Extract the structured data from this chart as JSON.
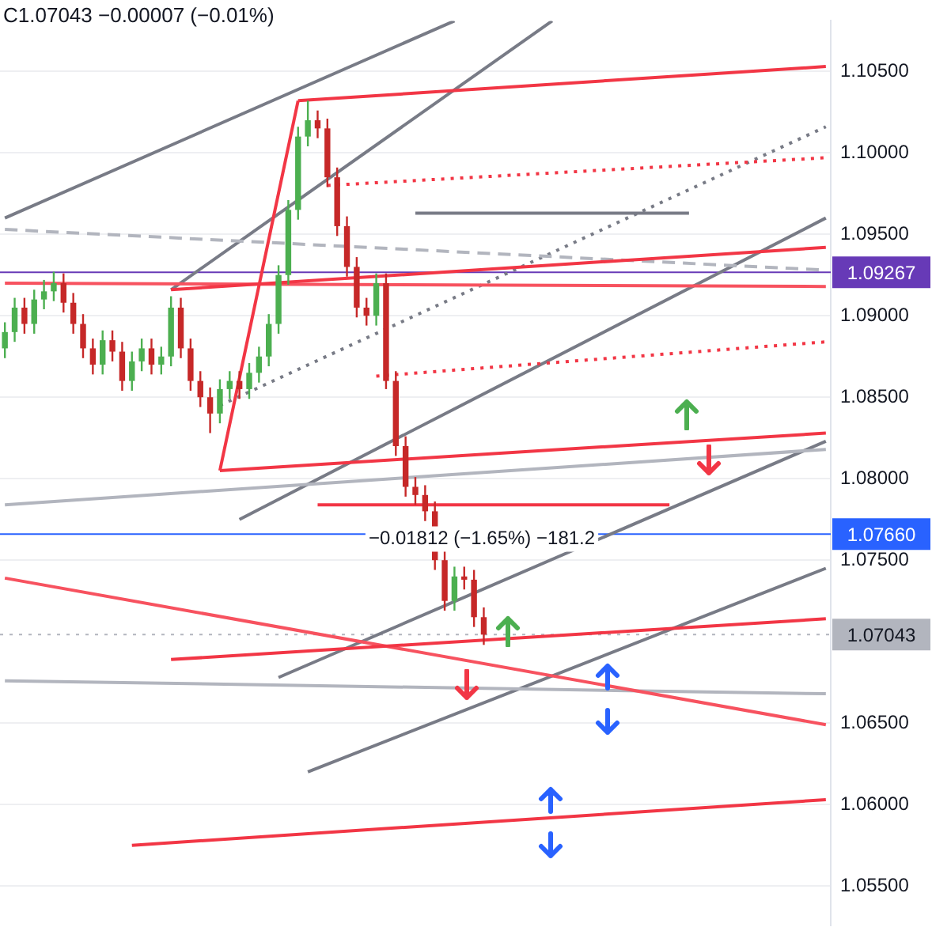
{
  "chart_data": {
    "type": "candlestick",
    "categories": [
      null,
      null,
      null,
      null,
      null,
      null,
      null,
      null,
      null,
      null,
      null,
      null,
      null,
      null,
      null,
      null,
      null,
      null,
      null,
      null,
      null,
      null,
      null,
      null,
      null,
      null,
      null,
      null,
      null,
      null,
      null,
      null,
      null,
      null,
      null,
      null,
      null,
      null,
      null,
      null,
      null,
      null,
      null,
      null,
      null,
      null,
      null,
      null,
      null,
      null,
      null,
      null,
      null,
      null,
      null,
      null,
      null,
      null,
      null,
      null,
      null,
      null,
      null,
      null,
      null,
      null,
      null,
      null,
      null,
      null,
      null,
      null,
      null,
      null,
      null,
      null,
      null,
      null,
      null,
      null,
      null,
      null,
      null,
      null,
      null
    ],
    "colors": [
      "#4caf50",
      "#4caf50",
      "#c62828",
      "#4caf50",
      "#4caf50",
      "#4caf50",
      "#c62828",
      "#c62828",
      "#c62828",
      "#c62828",
      "#4caf50",
      "#c62828",
      "#c62828",
      "#4caf50",
      "#4caf50",
      "#c62828",
      "#4caf50",
      "#4caf50",
      "#c62828",
      "#c62828",
      "#c62828",
      "#c62828",
      "#4caf50",
      "#4caf50",
      "#c62828",
      "#4caf50",
      "#4caf50",
      "#4caf50",
      "#4caf50",
      "#4caf50",
      "#4caf50",
      "#4caf50",
      "#c62828",
      "#c62828",
      "#c62828",
      "#c62828",
      "#c62828",
      "#c62828",
      "#4caf50",
      "#c62828",
      "#c62828",
      "#c62828",
      "#c62828",
      "#c62828",
      "#c62828",
      "#c62828",
      "#4caf50",
      "#c62828",
      "#c62828",
      "#c62828",
      null,
      null,
      null,
      null,
      null,
      null,
      null,
      null,
      null,
      null,
      null,
      null,
      null,
      null,
      null,
      null,
      null,
      null,
      null,
      null,
      null,
      null,
      null,
      null,
      null,
      null,
      null,
      null,
      null,
      null,
      null,
      null,
      null,
      null,
      null
    ],
    "ohlc": [
      [
        1.088,
        1.0896,
        1.0874,
        1.089
      ],
      [
        1.089,
        1.0911,
        1.0884,
        1.0905
      ],
      [
        1.0905,
        1.0911,
        1.0889,
        1.0895
      ],
      [
        1.0895,
        1.0916,
        1.0889,
        1.091
      ],
      [
        1.091,
        1.0922,
        1.0904,
        1.0915
      ],
      [
        1.0915,
        1.0927,
        1.0909,
        1.092
      ],
      [
        1.092,
        1.0926,
        1.0902,
        1.0908
      ],
      [
        1.0908,
        1.0914,
        1.0889,
        1.0895
      ],
      [
        1.0895,
        1.0901,
        1.0874,
        1.088
      ],
      [
        1.088,
        1.0886,
        1.0864,
        1.087
      ],
      [
        1.087,
        1.0891,
        1.0864,
        1.0885
      ],
      [
        1.0885,
        1.0891,
        1.0872,
        1.0878
      ],
      [
        1.0878,
        1.0884,
        1.0854,
        1.086
      ],
      [
        1.086,
        1.0878,
        1.0854,
        1.0872
      ],
      [
        1.0872,
        1.0886,
        1.0866,
        1.088
      ],
      [
        1.088,
        1.0886,
        1.0864,
        1.087
      ],
      [
        1.087,
        1.0881,
        1.0864,
        1.0875
      ],
      [
        1.0875,
        1.0912,
        1.0869,
        1.0905
      ],
      [
        1.0905,
        1.0911,
        1.0874,
        1.088
      ],
      [
        1.088,
        1.0886,
        1.0854,
        1.086
      ],
      [
        1.086,
        1.0866,
        1.0844,
        1.085
      ],
      [
        1.085,
        1.0856,
        1.0828,
        1.084
      ],
      [
        1.084,
        1.0861,
        1.0834,
        1.0855
      ],
      [
        1.0855,
        1.0866,
        1.0849,
        1.086
      ],
      [
        1.086,
        1.0866,
        1.0849,
        1.0855
      ],
      [
        1.0855,
        1.0871,
        1.0849,
        1.0865
      ],
      [
        1.0865,
        1.0881,
        1.0859,
        1.0875
      ],
      [
        1.0875,
        1.0901,
        1.0869,
        1.0895
      ],
      [
        1.0895,
        1.0931,
        1.0889,
        1.0925
      ],
      [
        1.0925,
        1.0971,
        1.0919,
        1.0965
      ],
      [
        1.0965,
        1.1016,
        1.0959,
        1.101
      ],
      [
        1.101,
        1.1032,
        1.1004,
        1.102
      ],
      [
        1.102,
        1.1026,
        1.1009,
        1.1015
      ],
      [
        1.1015,
        1.1021,
        1.0979,
        1.0985
      ],
      [
        1.0985,
        1.0991,
        1.0949,
        1.0955
      ],
      [
        1.0955,
        1.0961,
        1.0924,
        1.093
      ],
      [
        1.093,
        1.0936,
        1.0899,
        1.0905
      ],
      [
        1.0905,
        1.0911,
        1.0894,
        1.09
      ],
      [
        1.09,
        1.0926,
        1.0894,
        1.092
      ],
      [
        1.092,
        1.0926,
        1.0855,
        1.086
      ],
      [
        1.086,
        1.0866,
        1.0814,
        1.082
      ],
      [
        1.082,
        1.0826,
        1.0789,
        1.0795
      ],
      [
        1.0795,
        1.0801,
        1.0784,
        1.079
      ],
      [
        1.079,
        1.0796,
        1.0774,
        1.078
      ],
      [
        1.078,
        1.0786,
        1.0744,
        1.075
      ],
      [
        1.075,
        1.0756,
        1.0719,
        1.0725
      ],
      [
        1.0725,
        1.0746,
        1.0719,
        1.074
      ],
      [
        1.074,
        1.0746,
        1.0732,
        1.0738
      ],
      [
        1.0738,
        1.0744,
        1.0709,
        1.0715
      ],
      [
        1.0715,
        1.0721,
        1.0698,
        1.07043
      ],
      null,
      null,
      null,
      null,
      null,
      null,
      null,
      null,
      null,
      null,
      null,
      null,
      null,
      null,
      null,
      null,
      null,
      null,
      null,
      null,
      null,
      null,
      null,
      null,
      null,
      null,
      null,
      null,
      null,
      null,
      null,
      null,
      null,
      null,
      null
    ],
    "series": [
      {
        "type": "line",
        "color": "#f23645",
        "values": [
          null,
          null,
          null,
          null,
          null,
          null,
          null,
          null,
          null,
          null,
          null,
          null,
          null,
          null,
          null,
          null,
          null,
          null,
          null,
          null,
          null,
          null,
          null,
          null,
          null,
          null,
          null,
          null,
          null,
          null,
          1.1032,
          null,
          null,
          null,
          null,
          null,
          null,
          null,
          null,
          null,
          null,
          null,
          null,
          null,
          null,
          null,
          null,
          null,
          null,
          null,
          null,
          null,
          null,
          null,
          null,
          null,
          null,
          null,
          null,
          null,
          null,
          null,
          null,
          null,
          null,
          null,
          null,
          null,
          null,
          null,
          null,
          null,
          null,
          null,
          null,
          null,
          null,
          null,
          null,
          null,
          null,
          null,
          null,
          null,
          1.1053
        ]
      },
      {
        "type": "line",
        "color": "#f23645",
        "values": [
          null,
          null,
          null,
          null,
          null,
          null,
          null,
          null,
          null,
          null,
          null,
          null,
          null,
          null,
          null,
          null,
          null,
          null,
          null,
          null,
          null,
          null,
          1.0805,
          null,
          null,
          null,
          null,
          null,
          null,
          null,
          1.1032,
          null,
          null,
          null,
          null,
          null,
          null,
          null,
          null,
          null,
          null,
          null,
          null,
          null,
          null,
          null,
          null,
          null,
          null,
          null,
          null,
          null,
          null,
          null,
          null,
          null,
          null,
          null,
          null,
          null,
          null,
          null,
          null,
          null,
          null,
          null,
          null,
          null,
          null,
          null,
          null,
          null,
          null,
          null,
          null,
          null,
          null,
          null,
          null,
          null,
          null,
          null,
          null,
          null,
          null
        ]
      },
      {
        "type": "line",
        "color": "#f23645",
        "values": [
          null,
          null,
          null,
          null,
          null,
          null,
          null,
          null,
          null,
          null,
          null,
          null,
          null,
          null,
          null,
          null,
          null,
          1.0916,
          null,
          null,
          null,
          null,
          null,
          null,
          null,
          null,
          null,
          null,
          null,
          null,
          null,
          null,
          null,
          null,
          null,
          null,
          null,
          null,
          null,
          null,
          null,
          null,
          null,
          null,
          null,
          null,
          null,
          null,
          null,
          null,
          null,
          null,
          null,
          null,
          null,
          null,
          null,
          null,
          null,
          null,
          null,
          null,
          null,
          null,
          null,
          null,
          null,
          null,
          null,
          null,
          null,
          null,
          null,
          null,
          null,
          null,
          null,
          null,
          null,
          null,
          null,
          null,
          null,
          null,
          1.0942
        ]
      },
      {
        "type": "line",
        "color": "#f23645",
        "values": [
          null,
          null,
          null,
          null,
          null,
          null,
          null,
          null,
          null,
          null,
          null,
          null,
          null,
          null,
          null,
          null,
          null,
          null,
          null,
          null,
          null,
          null,
          1.0805,
          null,
          null,
          null,
          null,
          null,
          null,
          null,
          null,
          null,
          null,
          null,
          null,
          null,
          null,
          null,
          null,
          null,
          null,
          null,
          null,
          null,
          null,
          null,
          null,
          null,
          null,
          null,
          null,
          null,
          null,
          null,
          null,
          null,
          null,
          null,
          null,
          null,
          null,
          null,
          null,
          null,
          null,
          null,
          null,
          null,
          null,
          null,
          null,
          null,
          null,
          null,
          null,
          null,
          null,
          null,
          null,
          null,
          null,
          null,
          null,
          null,
          1.0828
        ]
      },
      {
        "type": "line",
        "color": "#f23645",
        "values": [
          null,
          null,
          null,
          null,
          null,
          null,
          null,
          null,
          null,
          null,
          null,
          null,
          null,
          null,
          null,
          null,
          null,
          1.0689,
          null,
          null,
          null,
          null,
          null,
          null,
          null,
          null,
          null,
          null,
          null,
          null,
          null,
          null,
          null,
          null,
          null,
          null,
          null,
          null,
          null,
          null,
          null,
          null,
          null,
          null,
          null,
          null,
          null,
          null,
          null,
          null,
          null,
          null,
          null,
          null,
          null,
          null,
          null,
          null,
          null,
          null,
          null,
          null,
          null,
          null,
          null,
          null,
          null,
          null,
          null,
          null,
          null,
          null,
          null,
          null,
          null,
          null,
          null,
          null,
          null,
          null,
          null,
          null,
          null,
          null,
          1.0714
        ]
      },
      {
        "type": "line",
        "color": "#f23645",
        "values": [
          null,
          null,
          null,
          null,
          null,
          null,
          null,
          null,
          null,
          null,
          null,
          null,
          null,
          1.0575,
          null,
          null,
          null,
          null,
          null,
          null,
          null,
          null,
          null,
          null,
          null,
          null,
          null,
          null,
          null,
          null,
          null,
          null,
          null,
          null,
          null,
          null,
          null,
          null,
          null,
          null,
          null,
          null,
          null,
          null,
          null,
          null,
          null,
          null,
          null,
          null,
          null,
          null,
          null,
          null,
          null,
          null,
          null,
          null,
          null,
          null,
          null,
          null,
          null,
          null,
          null,
          null,
          null,
          null,
          null,
          null,
          null,
          null,
          null,
          null,
          null,
          null,
          null,
          null,
          null,
          null,
          null,
          null,
          null,
          null,
          1.0603
        ]
      },
      {
        "type": "line",
        "color": "#f23645",
        "line_style": "dotted",
        "values": [
          null,
          null,
          null,
          null,
          null,
          null,
          null,
          null,
          null,
          null,
          null,
          null,
          null,
          null,
          null,
          null,
          null,
          null,
          null,
          null,
          null,
          null,
          null,
          null,
          null,
          null,
          null,
          null,
          null,
          null,
          null,
          null,
          null,
          1.098,
          null,
          null,
          null,
          null,
          null,
          null,
          null,
          null,
          null,
          null,
          null,
          null,
          null,
          null,
          null,
          null,
          null,
          null,
          null,
          null,
          null,
          null,
          null,
          null,
          null,
          null,
          null,
          null,
          null,
          null,
          null,
          null,
          null,
          null,
          null,
          null,
          null,
          null,
          null,
          null,
          null,
          null,
          null,
          null,
          null,
          null,
          null,
          null,
          null,
          null,
          1.0997
        ]
      },
      {
        "type": "line",
        "color": "#f23645",
        "line_style": "dotted",
        "values": [
          null,
          null,
          null,
          null,
          null,
          null,
          null,
          null,
          null,
          null,
          null,
          null,
          null,
          null,
          null,
          null,
          null,
          null,
          null,
          null,
          null,
          null,
          null,
          null,
          null,
          null,
          null,
          null,
          null,
          null,
          null,
          null,
          null,
          null,
          null,
          null,
          null,
          null,
          1.0863,
          null,
          null,
          null,
          null,
          null,
          null,
          null,
          null,
          null,
          null,
          null,
          null,
          null,
          null,
          null,
          null,
          null,
          null,
          null,
          null,
          null,
          null,
          null,
          null,
          null,
          null,
          null,
          null,
          null,
          null,
          null,
          null,
          null,
          null,
          null,
          null,
          null,
          null,
          null,
          null,
          null,
          null,
          null,
          null,
          null,
          1.0884
        ]
      },
      {
        "type": "line",
        "color": "#f7525f",
        "values": [
          1.092,
          null,
          null,
          null,
          null,
          null,
          null,
          null,
          null,
          null,
          null,
          null,
          null,
          null,
          null,
          null,
          null,
          null,
          null,
          null,
          null,
          null,
          null,
          null,
          null,
          null,
          null,
          null,
          null,
          null,
          null,
          null,
          null,
          null,
          null,
          null,
          null,
          null,
          null,
          null,
          null,
          null,
          null,
          null,
          null,
          null,
          null,
          null,
          null,
          null,
          null,
          null,
          null,
          null,
          null,
          null,
          null,
          null,
          null,
          null,
          null,
          null,
          null,
          null,
          null,
          null,
          null,
          null,
          null,
          null,
          null,
          null,
          null,
          null,
          null,
          null,
          null,
          null,
          null,
          null,
          null,
          null,
          null,
          null,
          1.0918
        ]
      },
      {
        "type": "line",
        "color": "#f7525f",
        "values": [
          1.0739,
          null,
          null,
          null,
          null,
          null,
          null,
          null,
          null,
          null,
          null,
          null,
          null,
          null,
          null,
          null,
          null,
          null,
          null,
          null,
          null,
          null,
          null,
          null,
          null,
          null,
          null,
          null,
          null,
          null,
          null,
          null,
          null,
          null,
          null,
          null,
          null,
          null,
          null,
          null,
          null,
          null,
          null,
          null,
          null,
          null,
          null,
          null,
          null,
          null,
          null,
          null,
          null,
          null,
          null,
          null,
          null,
          null,
          null,
          null,
          null,
          null,
          null,
          null,
          null,
          null,
          null,
          null,
          null,
          null,
          null,
          null,
          null,
          null,
          null,
          null,
          null,
          null,
          null,
          null,
          null,
          null,
          null,
          null,
          1.0649
        ]
      },
      {
        "type": "line",
        "color": "#f23645",
        "values": [
          null,
          null,
          null,
          null,
          null,
          null,
          null,
          null,
          null,
          null,
          null,
          null,
          null,
          null,
          null,
          null,
          null,
          null,
          null,
          null,
          null,
          null,
          null,
          null,
          null,
          null,
          null,
          null,
          null,
          null,
          null,
          null,
          1.0784,
          null,
          null,
          null,
          null,
          null,
          null,
          null,
          null,
          null,
          null,
          null,
          null,
          null,
          null,
          null,
          null,
          null,
          null,
          null,
          null,
          null,
          null,
          null,
          null,
          null,
          null,
          null,
          null,
          null,
          null,
          null,
          null,
          null,
          null,
          null,
          1.0784,
          null,
          null,
          null,
          null,
          null,
          null,
          null,
          null,
          null,
          null,
          null,
          null,
          null,
          null,
          null,
          null
        ]
      },
      {
        "type": "line",
        "color": "#787b86",
        "values": [
          null,
          null,
          null,
          null,
          null,
          null,
          null,
          null,
          null,
          null,
          null,
          null,
          null,
          null,
          null,
          null,
          null,
          null,
          null,
          null,
          null,
          null,
          null,
          null,
          null,
          null,
          null,
          null,
          null,
          null,
          null,
          null,
          null,
          null,
          null,
          null,
          null,
          null,
          null,
          null,
          null,
          null,
          1.0963,
          null,
          null,
          null,
          null,
          null,
          null,
          null,
          null,
          null,
          null,
          null,
          null,
          null,
          null,
          null,
          null,
          null,
          null,
          null,
          null,
          null,
          null,
          null,
          null,
          null,
          null,
          null,
          1.0963,
          null,
          null,
          null,
          null,
          null,
          null,
          null,
          null,
          null,
          null,
          null,
          null,
          null,
          null
        ]
      },
      {
        "type": "line",
        "color": "#b2b5be",
        "values": [
          1.0784,
          null,
          null,
          null,
          null,
          null,
          null,
          null,
          null,
          null,
          null,
          null,
          null,
          null,
          null,
          null,
          null,
          null,
          null,
          null,
          null,
          null,
          null,
          null,
          null,
          null,
          null,
          null,
          null,
          null,
          null,
          null,
          null,
          null,
          null,
          null,
          null,
          null,
          null,
          null,
          null,
          null,
          null,
          null,
          null,
          null,
          null,
          null,
          null,
          null,
          null,
          null,
          null,
          null,
          null,
          null,
          null,
          null,
          null,
          null,
          null,
          null,
          null,
          null,
          null,
          null,
          null,
          null,
          null,
          null,
          null,
          null,
          null,
          null,
          null,
          null,
          null,
          null,
          null,
          null,
          null,
          null,
          null,
          null,
          1.0818
        ]
      },
      {
        "type": "line",
        "color": "#b2b5be",
        "values": [
          1.0676,
          null,
          null,
          null,
          null,
          null,
          null,
          null,
          null,
          null,
          null,
          null,
          null,
          null,
          null,
          null,
          null,
          null,
          null,
          null,
          null,
          null,
          null,
          null,
          null,
          null,
          null,
          null,
          null,
          null,
          null,
          null,
          null,
          null,
          null,
          null,
          null,
          null,
          null,
          null,
          null,
          null,
          null,
          null,
          null,
          null,
          null,
          null,
          null,
          null,
          null,
          null,
          null,
          null,
          null,
          null,
          null,
          null,
          null,
          null,
          null,
          null,
          null,
          null,
          null,
          null,
          null,
          null,
          null,
          null,
          null,
          null,
          null,
          null,
          null,
          null,
          null,
          null,
          null,
          null,
          null,
          null,
          null,
          null,
          1.0668
        ]
      },
      {
        "type": "line",
        "color": "#b2b5be",
        "line_style": "dashed",
        "values": [
          1.0953,
          null,
          null,
          null,
          null,
          null,
          null,
          null,
          null,
          null,
          null,
          null,
          null,
          null,
          null,
          null,
          null,
          null,
          null,
          null,
          null,
          null,
          null,
          null,
          null,
          null,
          null,
          null,
          null,
          null,
          null,
          null,
          null,
          null,
          null,
          null,
          null,
          null,
          null,
          null,
          null,
          null,
          null,
          null,
          null,
          null,
          null,
          null,
          null,
          null,
          null,
          null,
          null,
          null,
          null,
          null,
          null,
          null,
          null,
          null,
          null,
          null,
          null,
          null,
          null,
          null,
          null,
          null,
          null,
          null,
          null,
          null,
          null,
          null,
          null,
          null,
          null,
          null,
          null,
          null,
          null,
          null,
          null,
          null,
          1.0928
        ]
      },
      {
        "type": "line",
        "color": "#787b86",
        "values": [
          1.096,
          null,
          null,
          null,
          null,
          null,
          null,
          null,
          null,
          null,
          null,
          null,
          null,
          null,
          null,
          null,
          null,
          null,
          null,
          null,
          null,
          null,
          null,
          null,
          null,
          null,
          null,
          null,
          null,
          null,
          null,
          null,
          null,
          null,
          null,
          null,
          null,
          null,
          null,
          null,
          null,
          null,
          null,
          null,
          null,
          null,
          1.1081,
          null,
          null,
          null,
          null,
          null,
          null,
          null,
          null,
          null,
          null,
          null,
          null,
          null,
          null,
          null,
          null,
          null,
          null,
          null,
          null,
          null,
          null,
          null,
          null,
          null,
          null,
          null,
          null,
          null,
          null,
          null,
          null,
          null,
          null,
          null,
          null,
          null,
          null
        ]
      },
      {
        "type": "line",
        "color": "#787b86",
        "values": [
          null,
          null,
          null,
          null,
          null,
          null,
          null,
          null,
          null,
          null,
          null,
          null,
          null,
          null,
          null,
          null,
          null,
          1.0916,
          null,
          null,
          null,
          null,
          null,
          null,
          null,
          null,
          null,
          null,
          null,
          null,
          null,
          null,
          null,
          null,
          null,
          null,
          null,
          null,
          null,
          null,
          null,
          null,
          null,
          null,
          null,
          null,
          null,
          null,
          null,
          null,
          null,
          null,
          null,
          null,
          null,
          null,
          1.1081,
          null,
          null,
          null,
          null,
          null,
          null,
          null,
          null,
          null,
          null,
          null,
          null,
          null,
          null,
          null,
          null,
          null,
          null,
          null,
          null,
          null,
          null,
          null,
          null,
          null,
          null,
          null,
          null
        ]
      },
      {
        "type": "line",
        "color": "#787b86",
        "values": [
          null,
          null,
          null,
          null,
          null,
          null,
          null,
          null,
          null,
          null,
          null,
          null,
          null,
          null,
          null,
          null,
          null,
          null,
          null,
          null,
          null,
          null,
          null,
          null,
          1.0775,
          null,
          null,
          null,
          null,
          null,
          null,
          null,
          null,
          null,
          null,
          null,
          null,
          null,
          null,
          null,
          null,
          null,
          null,
          null,
          null,
          null,
          null,
          null,
          null,
          null,
          null,
          null,
          null,
          null,
          null,
          null,
          null,
          null,
          null,
          null,
          null,
          null,
          null,
          null,
          null,
          null,
          null,
          null,
          null,
          null,
          null,
          null,
          null,
          null,
          null,
          null,
          null,
          null,
          null,
          null,
          null,
          null,
          null,
          null,
          1.096
        ]
      },
      {
        "type": "line",
        "color": "#787b86",
        "values": [
          null,
          null,
          null,
          null,
          null,
          null,
          null,
          null,
          null,
          null,
          null,
          null,
          null,
          null,
          null,
          null,
          null,
          null,
          null,
          null,
          null,
          null,
          null,
          null,
          null,
          null,
          null,
          null,
          1.0678,
          null,
          null,
          null,
          null,
          null,
          null,
          null,
          null,
          null,
          null,
          null,
          null,
          null,
          null,
          null,
          null,
          null,
          null,
          null,
          null,
          null,
          null,
          null,
          null,
          null,
          null,
          null,
          null,
          null,
          null,
          null,
          null,
          null,
          null,
          null,
          null,
          null,
          null,
          null,
          null,
          null,
          null,
          null,
          null,
          null,
          null,
          null,
          null,
          null,
          null,
          null,
          null,
          null,
          null,
          null,
          1.0823
        ]
      },
      {
        "type": "line",
        "color": "#787b86",
        "values": [
          null,
          null,
          null,
          null,
          null,
          null,
          null,
          null,
          null,
          null,
          null,
          null,
          null,
          null,
          null,
          null,
          null,
          null,
          null,
          null,
          null,
          null,
          null,
          null,
          null,
          null,
          null,
          null,
          null,
          null,
          null,
          1.062,
          null,
          null,
          null,
          null,
          null,
          null,
          null,
          null,
          null,
          null,
          null,
          null,
          null,
          null,
          null,
          null,
          null,
          null,
          null,
          null,
          null,
          null,
          null,
          null,
          null,
          null,
          null,
          null,
          null,
          null,
          null,
          null,
          null,
          null,
          null,
          null,
          null,
          null,
          null,
          null,
          null,
          null,
          null,
          null,
          null,
          null,
          null,
          null,
          null,
          null,
          null,
          null,
          1.0745
        ]
      },
      {
        "type": "line",
        "color": "#787b86",
        "line_style": "dotted",
        "values": [
          null,
          null,
          null,
          null,
          null,
          null,
          null,
          null,
          null,
          null,
          null,
          null,
          null,
          null,
          null,
          null,
          null,
          null,
          null,
          null,
          null,
          null,
          1.0845,
          null,
          null,
          null,
          null,
          null,
          null,
          null,
          null,
          null,
          null,
          null,
          null,
          null,
          null,
          null,
          null,
          null,
          null,
          null,
          null,
          null,
          null,
          null,
          null,
          null,
          null,
          null,
          null,
          null,
          null,
          null,
          null,
          null,
          null,
          null,
          null,
          null,
          null,
          null,
          null,
          null,
          null,
          null,
          null,
          null,
          null,
          null,
          null,
          null,
          null,
          null,
          null,
          null,
          null,
          null,
          null,
          null,
          null,
          null,
          null,
          null,
          1.1016
        ]
      }
    ],
    "ylim": [
      1.0526,
      1.1081
    ],
    "yticks": [
      {
        "value": 1.055,
        "label": "1.05500"
      },
      {
        "value": 1.06,
        "label": "1.06000"
      },
      {
        "value": 1.065,
        "label": "1.06500"
      },
      {
        "value": 1.075,
        "label": "1.07500"
      },
      {
        "value": 1.08,
        "label": "1.08000"
      },
      {
        "value": 1.085,
        "label": "1.08500"
      },
      {
        "value": 1.09,
        "label": "1.09000"
      },
      {
        "value": 1.095,
        "label": "1.09500"
      },
      {
        "value": 1.1,
        "label": "1.10000"
      },
      {
        "value": 1.105,
        "label": "1.10500"
      }
    ],
    "ref_lines": [
      {
        "axis": "y",
        "value": 1.09267,
        "label": "1.09267",
        "color": "#673ab7"
      },
      {
        "axis": "y",
        "value": 1.0766,
        "label": "1.07660",
        "color": "#2962ff"
      },
      {
        "axis": "y",
        "value": 1.07043,
        "label": "1.07043",
        "color": "#b2b5be",
        "line_style": "dotted"
      }
    ],
    "annotations": [
      "C1.07043 −0.00007 (−0.01%)",
      {
        "text": "−0.01812 (−1.65%) −181.2",
        "y": 1.0763
      }
    ],
    "grid": "y",
    "legend": false,
    "tick_labels": "y"
  }
}
